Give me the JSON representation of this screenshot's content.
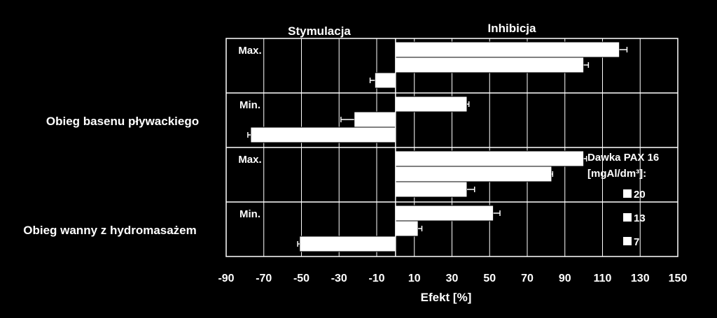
{
  "chart_data": {
    "type": "bar",
    "orientation": "horizontal",
    "xlabel": "Efekt [%]",
    "xlim": [
      -90,
      150
    ],
    "xticks": [
      -90,
      -70,
      -50,
      -30,
      -10,
      10,
      30,
      50,
      70,
      90,
      110,
      130,
      150
    ],
    "grid": "vertical",
    "region_labels": {
      "left": "Stymulacja",
      "right": "Inhibicja"
    },
    "group_labels": [
      "Obieg basenu pływackiego",
      "Obieg wanny z hydromasażem"
    ],
    "panels": [
      {
        "group": "Obieg basenu pływackiego",
        "label": "Max.",
        "bars": [
          {
            "dose": "20",
            "value": 119,
            "error": 4
          },
          {
            "dose": "13",
            "value": 100,
            "error": 2.5
          },
          {
            "dose": "7",
            "value": -11,
            "error": 2.5
          }
        ]
      },
      {
        "group": "Obieg basenu pływackiego",
        "label": "Min.",
        "bars": [
          {
            "dose": "20",
            "value": 38,
            "error": 1
          },
          {
            "dose": "13",
            "value": -22,
            "error": 7
          },
          {
            "dose": "7",
            "value": -77,
            "error": 1.5
          }
        ]
      },
      {
        "group": "Obieg wanny z hydromasażem",
        "label": "Max.",
        "bars": [
          {
            "dose": "20",
            "value": 100,
            "error": 1.5
          },
          {
            "dose": "13",
            "value": 83,
            "error": 0.5
          },
          {
            "dose": "7",
            "value": 38,
            "error": 4
          }
        ]
      },
      {
        "group": "Obieg wanny z hydromasażem",
        "label": "Min.",
        "bars": [
          {
            "dose": "20",
            "value": 52,
            "error": 3.5
          },
          {
            "dose": "13",
            "value": 12,
            "error": 2
          },
          {
            "dose": "7",
            "value": -51,
            "error": 1
          }
        ]
      }
    ],
    "legend": {
      "title_line1": "Dawka PAX 16",
      "title_line2": "[mgAl/dm³]:",
      "entries": [
        "20",
        "13",
        "7"
      ],
      "placement": "right-inside"
    },
    "colors": {
      "background": "#000000",
      "bar": "#ffffff",
      "axis": "#ffffff"
    }
  }
}
